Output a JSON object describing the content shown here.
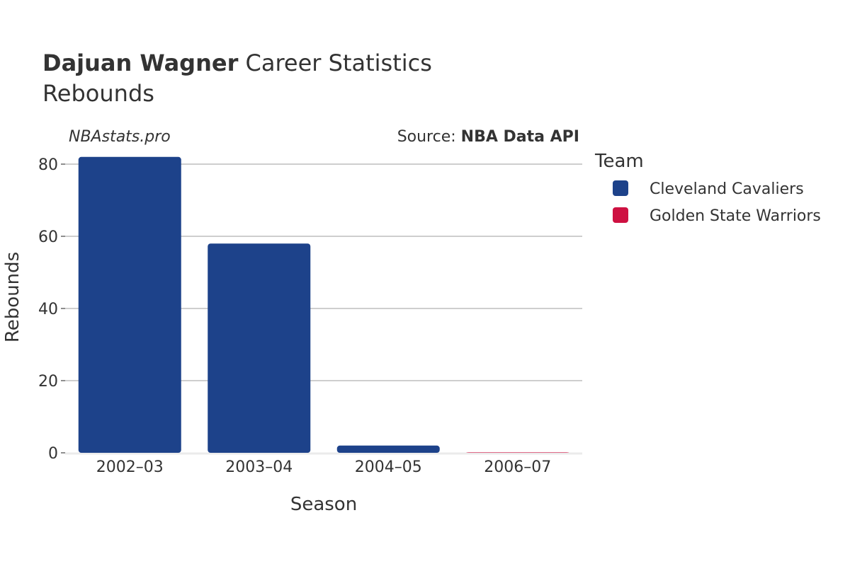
{
  "header": {
    "title_bold": "Dajuan Wagner",
    "title_rest": " Career Statistics",
    "subtitle": "Rebounds",
    "watermark": "NBAstats.pro",
    "source_label": "Source: ",
    "source_value": "NBA Data API"
  },
  "chart_data": {
    "type": "bar",
    "categories": [
      "2002–03",
      "2003–04",
      "2004–05",
      "2006–07"
    ],
    "series": [
      {
        "name": "Cleveland Cavaliers",
        "color": "#1d428a",
        "values": [
          82,
          58,
          2,
          null
        ]
      },
      {
        "name": "Golden State Warriors",
        "color": "#ce1141",
        "values": [
          null,
          null,
          null,
          0
        ]
      }
    ],
    "xlabel": "Season",
    "ylabel": "Rebounds",
    "ylim": [
      0,
      82
    ],
    "yticks": [
      0,
      20,
      40,
      60,
      80
    ],
    "grid": true,
    "legend_title": "Team",
    "legend_placement": "right"
  }
}
